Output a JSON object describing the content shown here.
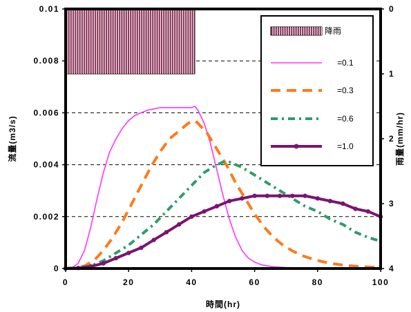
{
  "chart_data": {
    "type": "line",
    "xlabel": "時間(hr)",
    "ylabel": "流量(m3/s)",
    "y2label": "雨量(mm/hr)",
    "xlim": [
      0,
      100
    ],
    "ylim": [
      0,
      0.01
    ],
    "y2lim": [
      0,
      4
    ],
    "y2_inverted": true,
    "x_ticks": [
      "0",
      "20",
      "40",
      "60",
      "80",
      "100"
    ],
    "x_tick_values": [
      0,
      20,
      40,
      60,
      80,
      100
    ],
    "y_ticks": [
      "0",
      "0.002",
      "0.004",
      "0.006",
      "0.008",
      "0.01"
    ],
    "y_tick_values": [
      0,
      0.002,
      0.004,
      0.006,
      0.008,
      0.01
    ],
    "y2_ticks": [
      "0",
      "1",
      "2",
      "3",
      "4"
    ],
    "y2_tick_values": [
      0,
      1,
      2,
      3,
      4
    ],
    "grid": "horizontal dashed",
    "legend_position": "top-right",
    "rainfall": {
      "name": "降雨",
      "x_start": 0,
      "x_end": 41,
      "value": 1.0,
      "color": "#8e3a5e"
    },
    "series": [
      {
        "name": "=0.1",
        "color": "#ff33ff",
        "style": "solid",
        "x": [
          0,
          2,
          4,
          6,
          8,
          10,
          12,
          14,
          16,
          18,
          20,
          22,
          24,
          26,
          28,
          30,
          32,
          34,
          36,
          38,
          40,
          41,
          42,
          44,
          46,
          48,
          50,
          52,
          54,
          56,
          58,
          60,
          62,
          64,
          66,
          70,
          75,
          80,
          90,
          100
        ],
        "values": [
          0,
          3e-05,
          0.0002,
          0.0007,
          0.0016,
          0.0027,
          0.0037,
          0.0045,
          0.005,
          0.0054,
          0.0057,
          0.0059,
          0.006,
          0.0061,
          0.00615,
          0.0062,
          0.0062,
          0.0062,
          0.0062,
          0.0062,
          0.0062,
          0.00625,
          0.0061,
          0.0056,
          0.0048,
          0.0038,
          0.0028,
          0.0019,
          0.0012,
          0.0007,
          0.0004,
          0.00025,
          0.00015,
          0.0001,
          7e-05,
          4e-05,
          2e-05,
          1e-05,
          0,
          0
        ]
      },
      {
        "name": "=0.3",
        "color": "#ff7a1a",
        "style": "long-dash",
        "x": [
          0,
          3,
          6,
          9,
          12,
          15,
          18,
          21,
          24,
          27,
          30,
          33,
          36,
          39,
          41,
          42,
          45,
          48,
          51,
          54,
          57,
          60,
          63,
          66,
          69,
          72,
          75,
          78,
          81,
          84,
          87,
          90,
          93,
          96,
          100
        ],
        "values": [
          0,
          2e-05,
          0.0001,
          0.0003,
          0.0007,
          0.0012,
          0.0018,
          0.0025,
          0.0032,
          0.0039,
          0.0045,
          0.005,
          0.0053,
          0.0056,
          0.0057,
          0.0056,
          0.0052,
          0.0046,
          0.004,
          0.0033,
          0.0027,
          0.0021,
          0.0016,
          0.0012,
          0.0009,
          0.00068,
          0.0005,
          0.00038,
          0.00028,
          0.0002,
          0.00015,
          0.00011,
          8e-05,
          6e-05,
          4e-05
        ]
      },
      {
        "name": "=0.6",
        "color": "#2e9c6a",
        "style": "dash-dot",
        "x": [
          0,
          4,
          8,
          12,
          16,
          20,
          24,
          28,
          32,
          36,
          40,
          44,
          48,
          50,
          52,
          56,
          60,
          64,
          68,
          72,
          76,
          80,
          84,
          88,
          92,
          96,
          100
        ],
        "values": [
          0,
          3e-05,
          0.0001,
          0.0003,
          0.0006,
          0.0009,
          0.0013,
          0.0017,
          0.0022,
          0.0027,
          0.0032,
          0.0037,
          0.004,
          0.0041,
          0.0041,
          0.0039,
          0.0036,
          0.0033,
          0.003,
          0.0027,
          0.0024,
          0.0022,
          0.0019,
          0.0017,
          0.0014,
          0.0012,
          0.00105
        ]
      },
      {
        "name": "=1.0",
        "color": "#7a1570",
        "style": "solid-dots",
        "x": [
          0,
          4,
          8,
          12,
          16,
          20,
          24,
          28,
          32,
          36,
          40,
          44,
          48,
          52,
          56,
          60,
          64,
          68,
          72,
          76,
          80,
          84,
          88,
          92,
          96,
          100
        ],
        "values": [
          0,
          2e-05,
          8e-05,
          0.0002,
          0.0004,
          0.0006,
          0.0008,
          0.0011,
          0.0014,
          0.0017,
          0.002,
          0.0022,
          0.0024,
          0.0026,
          0.0027,
          0.0028,
          0.0028,
          0.0028,
          0.0028,
          0.0028,
          0.0027,
          0.0026,
          0.0025,
          0.0023,
          0.0022,
          0.002
        ]
      }
    ]
  }
}
